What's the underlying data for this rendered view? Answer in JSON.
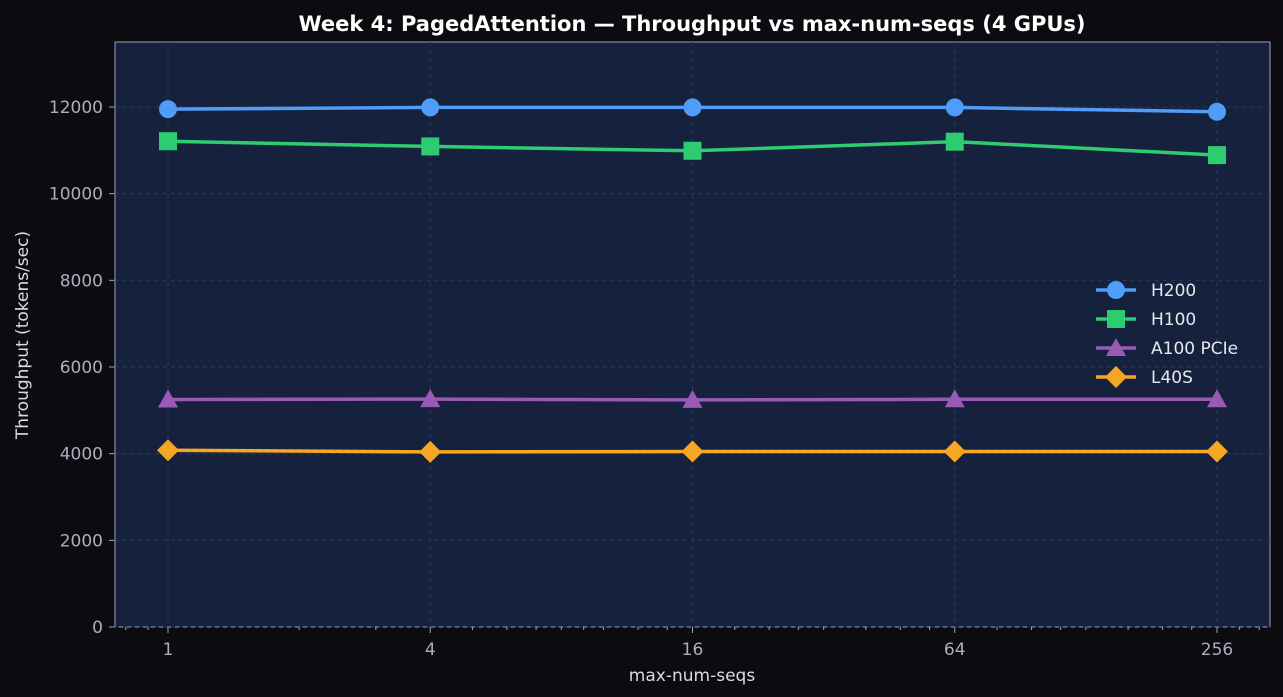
{
  "chart_data": {
    "type": "line",
    "title": "Week 4: PagedAttention — Throughput vs max-num-seqs (4 GPUs)",
    "xlabel": "max-num-seqs",
    "ylabel": "Throughput (tokens/sec)",
    "x": [
      1,
      4,
      16,
      64,
      256
    ],
    "x_tick_labels": [
      "1",
      "4",
      "16",
      "64",
      "256"
    ],
    "x_scale": "log2",
    "ylim": [
      0,
      13500
    ],
    "y_ticks": [
      0,
      2000,
      4000,
      6000,
      8000,
      10000,
      12000
    ],
    "grid": true,
    "legend_position": "right",
    "series": [
      {
        "name": "H200",
        "color": "#4f9cf9",
        "marker": "circle",
        "values": [
          11950,
          11990,
          11990,
          11990,
          11890
        ]
      },
      {
        "name": "H100",
        "color": "#2ecc71",
        "marker": "square",
        "values": [
          11210,
          11090,
          10990,
          11200,
          10890
        ]
      },
      {
        "name": "A100 PCIe",
        "color": "#9b59b6",
        "marker": "triangle",
        "values": [
          5250,
          5260,
          5240,
          5255,
          5255
        ]
      },
      {
        "name": "L40S",
        "color": "#f5a623",
        "marker": "diamond",
        "values": [
          4080,
          4040,
          4050,
          4050,
          4050
        ]
      }
    ]
  }
}
